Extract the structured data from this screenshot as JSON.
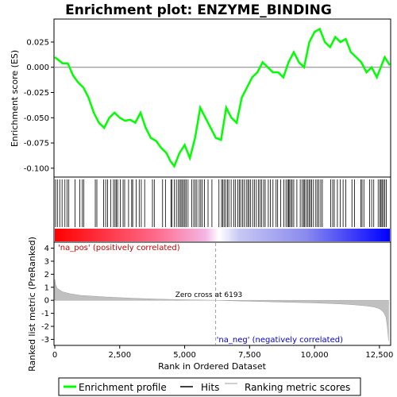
{
  "chart_data": {
    "type": "line",
    "title": "Enrichment plot: ENZYME_BINDING",
    "xlabel": "Rank in Ordered Dataset",
    "ylabel_top": "Enrichment score (ES)",
    "ylabel_bottom": "Ranked list metric (PreRanked)",
    "xlim": [
      0,
      12900
    ],
    "x_ticks": [
      0,
      2500,
      5000,
      7500,
      10000,
      12500
    ],
    "x_tick_labels": [
      "0",
      "2,500",
      "5,000",
      "7,500",
      "10,000",
      "12,500"
    ],
    "es_panel": {
      "ylim": [
        -0.108,
        0.047
      ],
      "y_ticks": [
        0.025,
        0.0,
        -0.025,
        -0.05,
        -0.075,
        -0.1
      ],
      "y_tick_labels": [
        "0.025",
        "0.000",
        "-0.025",
        "-0.050",
        "-0.075",
        "-0.100"
      ],
      "series": [
        {
          "name": "Enrichment profile",
          "color": "#00ff00",
          "x": [
            0,
            150,
            300,
            500,
            700,
            900,
            1100,
            1300,
            1500,
            1700,
            1900,
            2100,
            2300,
            2500,
            2700,
            2900,
            3100,
            3300,
            3500,
            3700,
            3900,
            4100,
            4300,
            4450,
            4600,
            4800,
            5000,
            5200,
            5400,
            5600,
            5800,
            6000,
            6200,
            6400,
            6600,
            6800,
            7000,
            7200,
            7400,
            7600,
            7800,
            8000,
            8200,
            8400,
            8600,
            8800,
            9000,
            9200,
            9400,
            9600,
            9800,
            10000,
            10200,
            10400,
            10600,
            10800,
            11000,
            11200,
            11400,
            11600,
            11800,
            12000,
            12200,
            12400,
            12550,
            12700,
            12900
          ],
          "y": [
            0.01,
            0.007,
            0.004,
            0.004,
            -0.008,
            -0.015,
            -0.02,
            -0.03,
            -0.045,
            -0.055,
            -0.06,
            -0.05,
            -0.045,
            -0.05,
            -0.053,
            -0.052,
            -0.055,
            -0.045,
            -0.06,
            -0.07,
            -0.073,
            -0.08,
            -0.085,
            -0.093,
            -0.098,
            -0.085,
            -0.077,
            -0.09,
            -0.07,
            -0.04,
            -0.05,
            -0.06,
            -0.07,
            -0.072,
            -0.04,
            -0.05,
            -0.055,
            -0.03,
            -0.02,
            -0.01,
            -0.005,
            0.005,
            0.0,
            -0.005,
            -0.005,
            -0.01,
            0.005,
            0.015,
            0.005,
            0.0,
            0.025,
            0.035,
            0.038,
            0.025,
            0.02,
            0.03,
            0.025,
            0.028,
            0.015,
            0.01,
            0.005,
            -0.005,
            0.0,
            -0.01,
            0.0,
            0.01,
            0.002
          ]
        }
      ],
      "zero_line": true
    },
    "hits": {
      "name": "Hits",
      "color": "#000000",
      "positions": [
        30,
        100,
        190,
        280,
        390,
        470,
        540,
        780,
        960,
        1060,
        1120,
        1560,
        1620,
        1880,
        1960,
        2030,
        2150,
        2260,
        2320,
        2370,
        2420,
        2520,
        2630,
        2690,
        2840,
        2960,
        3000,
        3130,
        3250,
        3330,
        3460,
        3760,
        3830,
        4150,
        4260,
        4470,
        4510,
        4600,
        4680,
        4750,
        4810,
        4860,
        4910,
        4960,
        5010,
        5060,
        5130,
        5270,
        5350,
        5410,
        5470,
        5560,
        5620,
        5680,
        5760,
        5900,
        6050,
        6320,
        6420,
        6470,
        6520,
        6580,
        6650,
        6700,
        6790,
        6890,
        6960,
        7050,
        7110,
        7160,
        7230,
        7290,
        7370,
        7430,
        7480,
        7540,
        7620,
        7690,
        7760,
        7840,
        7900,
        7960,
        8040,
        8100,
        8220,
        8300,
        8400,
        8520,
        8580,
        8700,
        8820,
        8900,
        8960,
        9000,
        9040,
        9090,
        9140,
        9200,
        9320,
        9450,
        9520,
        9580,
        9620,
        9680,
        9740,
        9790,
        9840,
        9890,
        9960,
        10050,
        10110,
        10170,
        10240,
        10300,
        10620,
        10700,
        10760,
        10880,
        10990,
        11100,
        11200,
        11440,
        11540,
        11780,
        11830,
        11900,
        12120,
        12200,
        12280,
        12450,
        12520,
        12560,
        12600,
        12650,
        12700,
        12760
      ]
    },
    "metric_panel": {
      "name": "Ranking metric scores",
      "color": "#c0c0c0",
      "ylim": [
        -3.4,
        4.4
      ],
      "y_ticks": [
        4,
        3,
        2,
        1,
        0,
        -1,
        -2,
        -3
      ],
      "y_tick_labels": [
        "4",
        "3",
        "2",
        "1",
        "0",
        "-1",
        "-2",
        "-3"
      ],
      "x": [
        0,
        30,
        100,
        300,
        600,
        1000,
        2000,
        3000,
        4000,
        5000,
        6193,
        7000,
        8000,
        9000,
        10000,
        11000,
        11500,
        12000,
        12300,
        12500,
        12650,
        12750,
        12800,
        12850
      ],
      "y": [
        1.6,
        1.2,
        0.9,
        0.65,
        0.5,
        0.38,
        0.25,
        0.16,
        0.09,
        0.04,
        0.0,
        -0.05,
        -0.1,
        -0.15,
        -0.2,
        -0.28,
        -0.34,
        -0.43,
        -0.52,
        -0.65,
        -0.9,
        -1.3,
        -2.0,
        -3.1
      ]
    },
    "annotations": {
      "pos_label": "'na_pos' (positively correlated)",
      "neg_label": "'na_neg' (negatively correlated)",
      "zero_cross_label": "Zero cross at 6193",
      "zero_cross_x": 6193
    },
    "legend": {
      "position": "bottom",
      "entries": [
        {
          "label": "Enrichment profile",
          "color": "#00ff00"
        },
        {
          "label": "Hits",
          "color": "#000000"
        },
        {
          "label": "Ranking metric scores",
          "color": "#c0c0c0"
        }
      ]
    },
    "colors": {
      "pos_color": "#ff0000",
      "neg_color": "#0000ff",
      "mid_color": "#ffffff"
    }
  }
}
